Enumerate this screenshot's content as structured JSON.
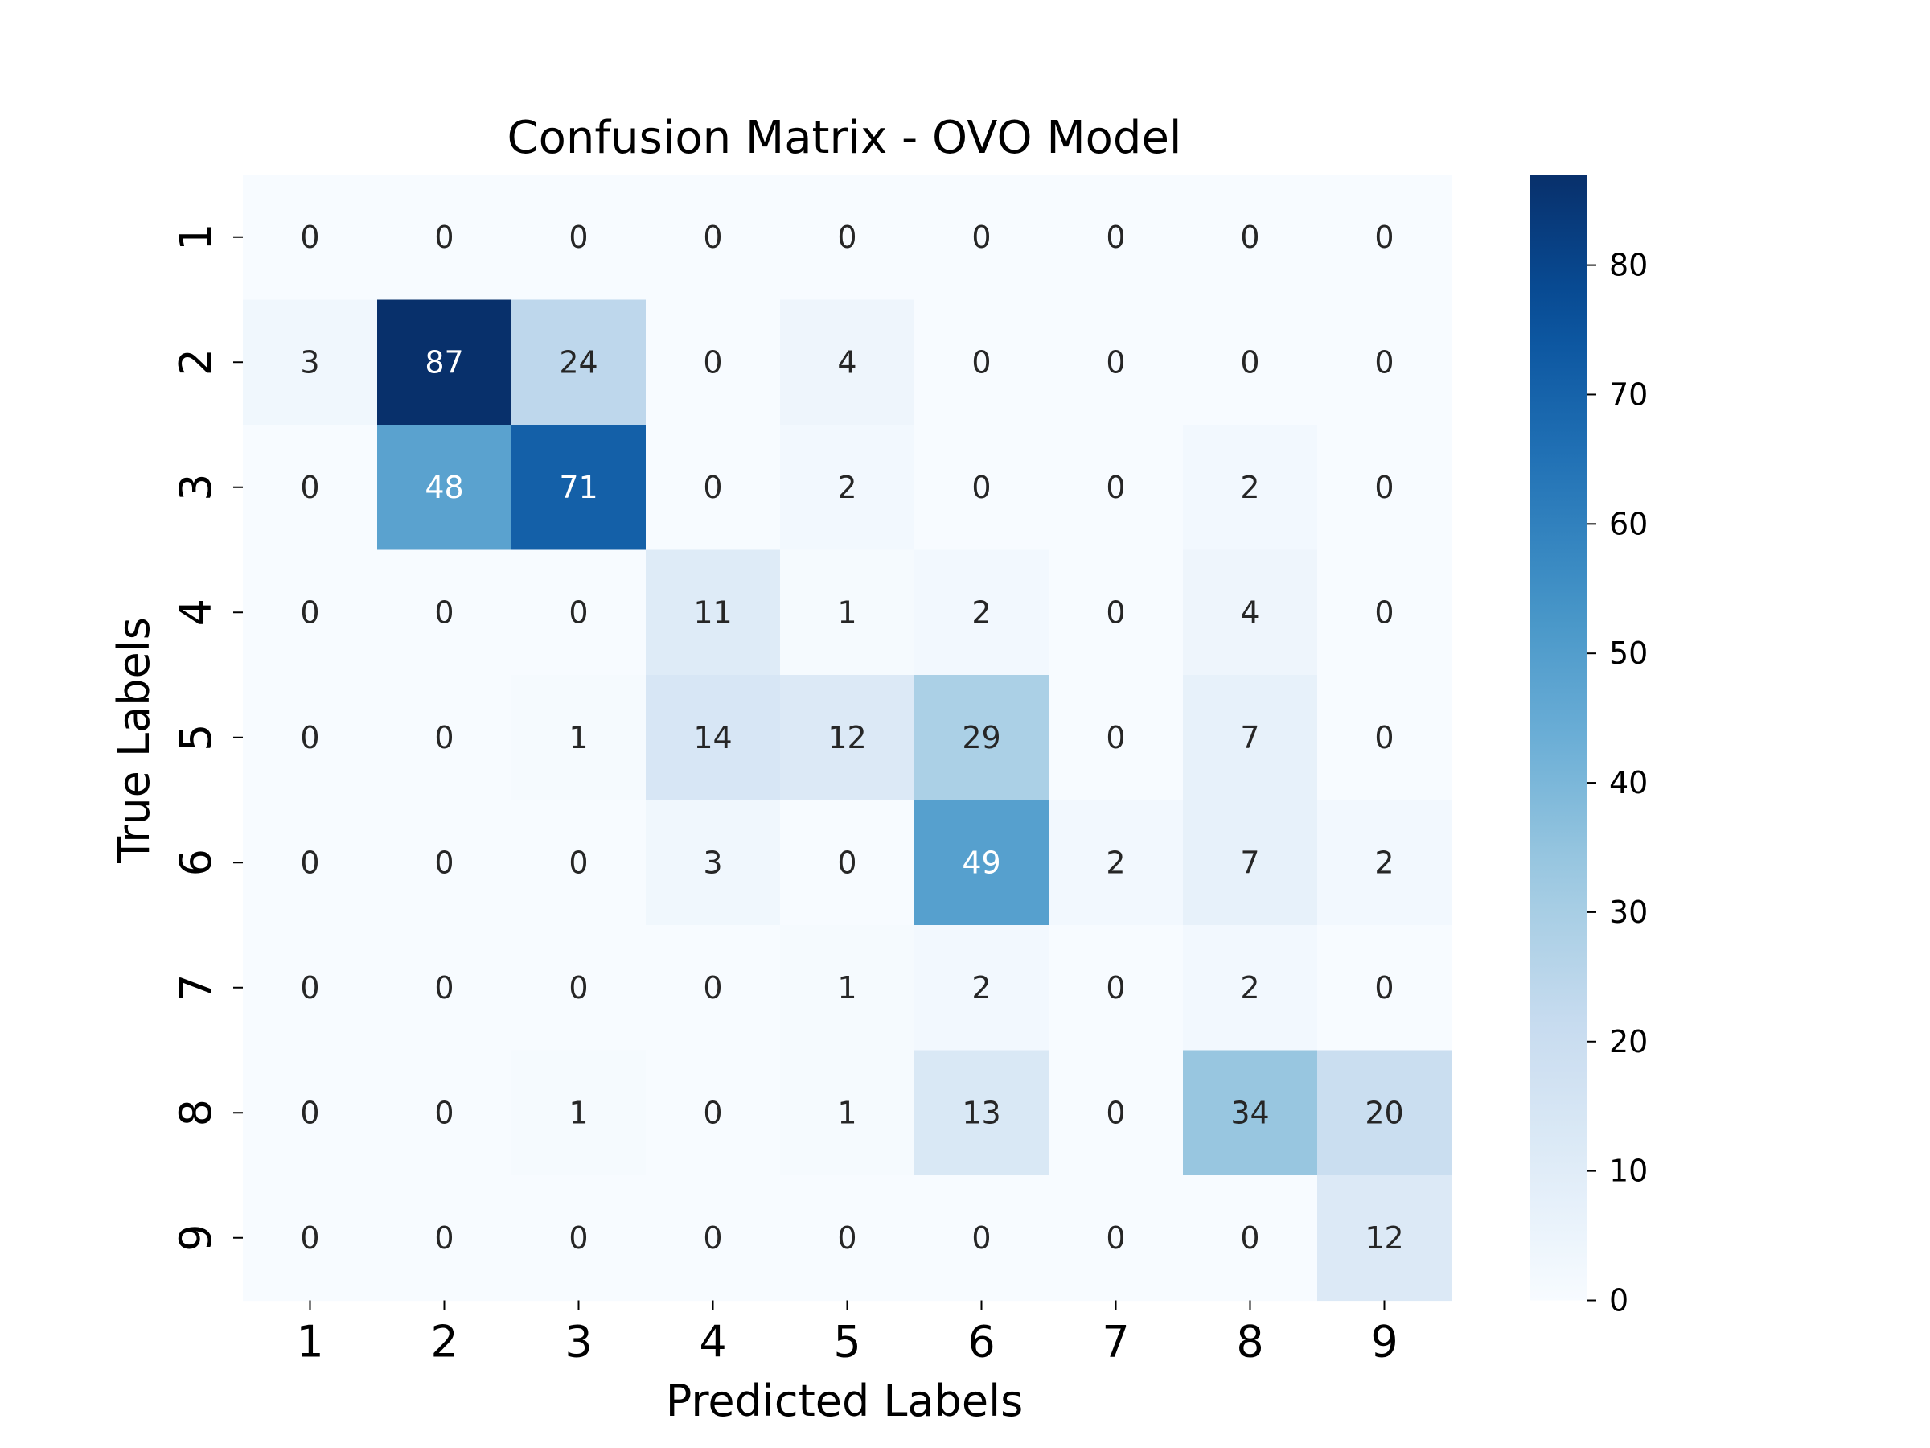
{
  "chart_data": {
    "type": "heatmap",
    "title": "Confusion Matrix - OVO Model",
    "xlabel": "Predicted Labels",
    "ylabel": "True Labels",
    "x_categories": [
      "1",
      "2",
      "3",
      "4",
      "5",
      "6",
      "7",
      "8",
      "9"
    ],
    "y_categories": [
      "1",
      "2",
      "3",
      "4",
      "5",
      "6",
      "7",
      "8",
      "9"
    ],
    "values": [
      [
        0,
        0,
        0,
        0,
        0,
        0,
        0,
        0,
        0
      ],
      [
        3,
        87,
        24,
        0,
        4,
        0,
        0,
        0,
        0
      ],
      [
        0,
        48,
        71,
        0,
        2,
        0,
        0,
        2,
        0
      ],
      [
        0,
        0,
        0,
        11,
        1,
        2,
        0,
        4,
        0
      ],
      [
        0,
        0,
        1,
        14,
        12,
        29,
        0,
        7,
        0
      ],
      [
        0,
        0,
        0,
        3,
        0,
        49,
        2,
        7,
        2
      ],
      [
        0,
        0,
        0,
        0,
        1,
        2,
        0,
        2,
        0
      ],
      [
        0,
        0,
        1,
        0,
        1,
        13,
        0,
        34,
        20
      ],
      [
        0,
        0,
        0,
        0,
        0,
        0,
        0,
        0,
        12
      ]
    ],
    "colorscale": "Blues",
    "colorbar": {
      "range": [
        0,
        87
      ],
      "ticks": [
        0,
        10,
        20,
        30,
        40,
        50,
        60,
        70,
        80
      ],
      "tick_labels": [
        "0",
        "10",
        "20",
        "30",
        "40",
        "50",
        "60",
        "70",
        "80"
      ]
    },
    "annotated": true
  }
}
